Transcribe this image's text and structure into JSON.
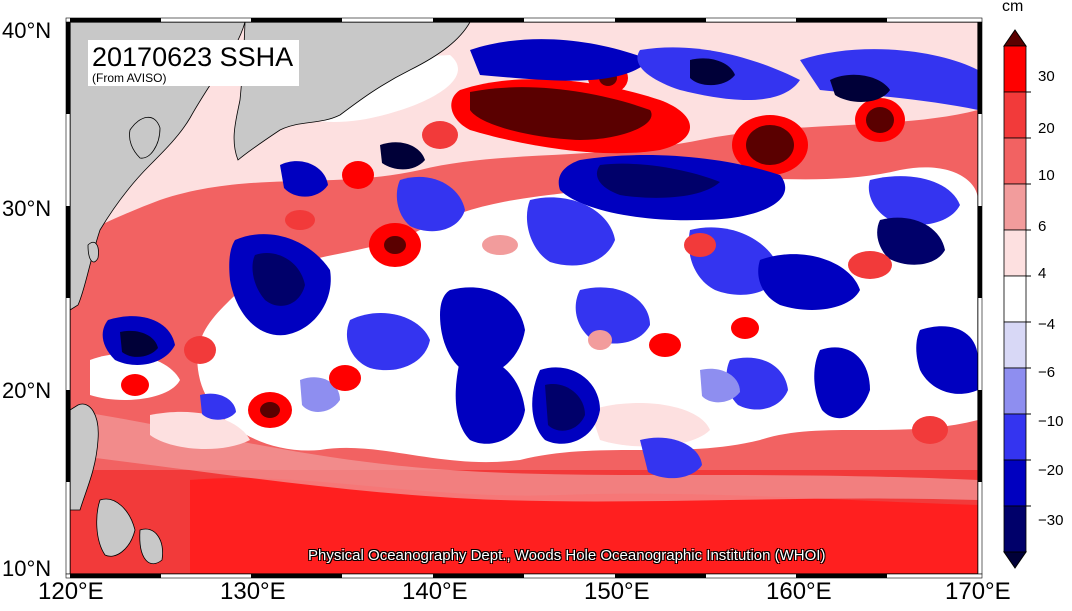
{
  "map": {
    "title": "20170623 SSHA",
    "subtitle": "(From AVISO)",
    "credit": "Physical Oceanography Dept., Woods Hole Oceanographic Institution (WHOI)",
    "lat_labels": [
      "40°N",
      "30°N",
      "20°N",
      "10°N"
    ],
    "lon_labels": [
      "120°E",
      "130°E",
      "140°E",
      "150°E",
      "160°E",
      "170°E"
    ],
    "extent": {
      "lon": [
        120,
        170
      ],
      "lat": [
        10,
        40
      ]
    }
  },
  "colorbar": {
    "unit": "cm",
    "tick_labels": [
      "30",
      "20",
      "10",
      "6",
      "4",
      "−4",
      "−6",
      "−10",
      "−20",
      "−30"
    ],
    "colors": [
      "#5a0000",
      "#ff0000",
      "#f23a3a",
      "#f26262",
      "#f29c9c",
      "#fde0e0",
      "#ffffff",
      "#d8d8f6",
      "#8e8ef0",
      "#3434f0",
      "#0000c0",
      "#00006a",
      "#000038"
    ]
  }
}
